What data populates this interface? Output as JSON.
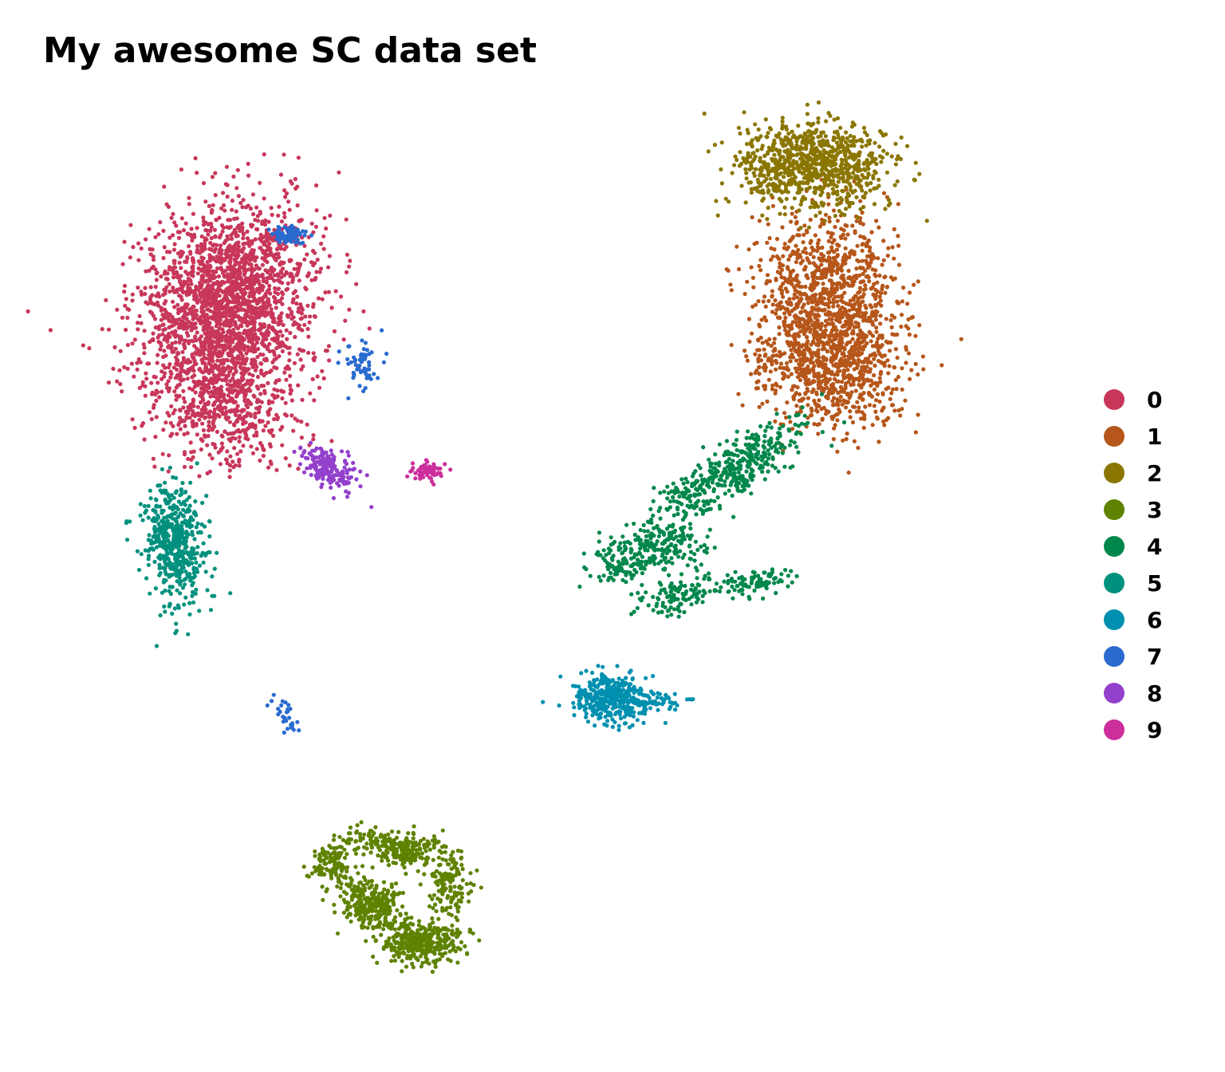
{
  "title": "My awesome SC data set",
  "chart_data": {
    "type": "scatter",
    "title": "My awesome SC data set",
    "xlabel": "",
    "ylabel": "",
    "axes": "hidden",
    "grid": false,
    "legend_position": "right",
    "xlim": [
      -10,
      14
    ],
    "ylim": [
      -12,
      11
    ],
    "clusters": [
      {
        "name": "0",
        "color": "#C8375A",
        "blobs": [
          {
            "x": -6.3,
            "y": 6.4,
            "sx": 1.1,
            "sy": 1.2,
            "r": -0.55,
            "n": 1500
          },
          {
            "x": -6.9,
            "y": 5.0,
            "sx": 1.0,
            "sy": 1.1,
            "r": -0.3,
            "n": 700
          },
          {
            "x": -6.5,
            "y": 3.3,
            "sx": 0.9,
            "sy": 0.8,
            "r": -0.2,
            "n": 500
          }
        ]
      },
      {
        "name": "1",
        "color": "#B6561A",
        "blobs": [
          {
            "x": 9.2,
            "y": 6.2,
            "sx": 0.9,
            "sy": 1.1,
            "r": 0.1,
            "n": 1000
          },
          {
            "x": 9.4,
            "y": 4.3,
            "sx": 0.9,
            "sy": 0.8,
            "r": 0.0,
            "n": 650
          },
          {
            "x": 7.6,
            "y": 4.5,
            "sx": 0.3,
            "sy": 0.3,
            "r": 0.0,
            "n": 40
          }
        ]
      },
      {
        "name": "2",
        "color": "#8A7600",
        "blobs": [
          {
            "x": 8.8,
            "y": 9.6,
            "sx": 0.95,
            "sy": 0.55,
            "r": 0.0,
            "n": 900
          }
        ]
      },
      {
        "name": "3",
        "color": "#5F8200",
        "blobs": [
          {
            "x": -1.5,
            "y": -10.7,
            "sx": 0.55,
            "sy": 0.28,
            "r": 0.0,
            "n": 350
          },
          {
            "x": -2.8,
            "y": -9.7,
            "sx": 0.45,
            "sy": 0.3,
            "r": -0.3,
            "n": 300
          },
          {
            "x": -3.8,
            "y": -8.6,
            "sx": 0.28,
            "sy": 0.25,
            "r": 0.0,
            "n": 100
          },
          {
            "x": -0.7,
            "y": -9.1,
            "sx": 0.3,
            "sy": 0.45,
            "r": 0.0,
            "n": 150
          },
          {
            "x": -1.9,
            "y": -8.3,
            "sx": 0.38,
            "sy": 0.2,
            "r": 0.0,
            "n": 170
          },
          {
            "x": -2.9,
            "y": -8.0,
            "sx": 0.5,
            "sy": 0.15,
            "r": 0.0,
            "n": 70
          }
        ]
      },
      {
        "name": "4",
        "color": "#00874B",
        "blobs": [
          {
            "x": 6.6,
            "y": 1.6,
            "sx": 1.2,
            "sy": 0.3,
            "r": 0.55,
            "n": 420
          },
          {
            "x": 4.4,
            "y": -0.5,
            "sx": 0.8,
            "sy": 0.28,
            "r": 0.3,
            "n": 260
          },
          {
            "x": 5.3,
            "y": -1.6,
            "sx": 0.5,
            "sy": 0.25,
            "r": 0.3,
            "n": 120
          },
          {
            "x": 7.3,
            "y": -1.3,
            "sx": 0.5,
            "sy": 0.15,
            "r": 0.15,
            "n": 90
          }
        ]
      },
      {
        "name": "5",
        "color": "#00917E",
        "blobs": [
          {
            "x": -7.9,
            "y": -0.3,
            "sx": 0.4,
            "sy": 0.8,
            "r": 0.1,
            "n": 500
          }
        ]
      },
      {
        "name": "6",
        "color": "#0090AF",
        "blobs": [
          {
            "x": 3.5,
            "y": -4.3,
            "sx": 0.5,
            "sy": 0.3,
            "r": 0.0,
            "n": 380
          },
          {
            "x": 4.8,
            "y": -4.4,
            "sx": 0.6,
            "sy": 0.12,
            "r": 0.0,
            "n": 40
          }
        ]
      },
      {
        "name": "7",
        "color": "#2A6BCF",
        "blobs": [
          {
            "x": -4.9,
            "y": 7.8,
            "sx": 0.25,
            "sy": 0.12,
            "r": 0.0,
            "n": 70
          },
          {
            "x": -3.0,
            "y": 4.4,
            "sx": 0.25,
            "sy": 0.3,
            "r": 0.0,
            "n": 60
          },
          {
            "x": -5.0,
            "y": -4.8,
            "sx": 0.15,
            "sy": 0.3,
            "r": 0.5,
            "n": 30
          }
        ]
      },
      {
        "name": "8",
        "color": "#9340CC",
        "blobs": [
          {
            "x": -3.9,
            "y": 1.7,
            "sx": 0.4,
            "sy": 0.22,
            "r": -0.5,
            "n": 180
          }
        ]
      },
      {
        "name": "9",
        "color": "#CC2E9B",
        "blobs": [
          {
            "x": -1.3,
            "y": 1.6,
            "sx": 0.22,
            "sy": 0.12,
            "r": 0.0,
            "n": 70
          }
        ]
      }
    ]
  }
}
